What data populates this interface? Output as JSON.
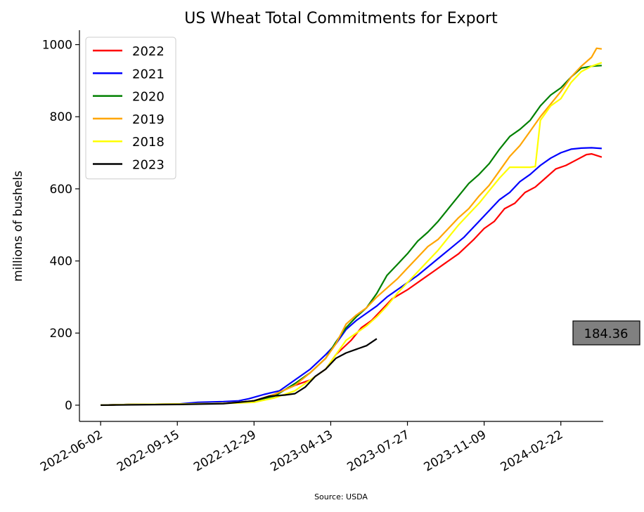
{
  "chart_data": {
    "type": "line",
    "title": "US Wheat Total Commitments for Export",
    "xlabel": "",
    "ylabel": "millions of bushels",
    "source": "Source: USDA",
    "ylim": [
      -45,
      1040
    ],
    "xlim": [
      "2022-05-04",
      "2024-04-20"
    ],
    "y_ticks": [
      0,
      200,
      400,
      600,
      800,
      1000
    ],
    "x_ticks": [
      "2022-06-02",
      "2022-09-15",
      "2022-12-29",
      "2023-04-13",
      "2023-07-27",
      "2023-11-09",
      "2024-02-22"
    ],
    "grid": false,
    "legend_position": "top-left",
    "annotation": {
      "text": "184.36",
      "background": "#808080"
    },
    "series": [
      {
        "name": "2022",
        "color": "#ff0000",
        "points": [
          [
            "2022-06-02",
            0
          ],
          [
            "2022-07-14",
            2
          ],
          [
            "2022-09-15",
            3
          ],
          [
            "2022-11-17",
            5
          ],
          [
            "2022-12-08",
            8
          ],
          [
            "2022-12-29",
            12
          ],
          [
            "2023-01-26",
            30
          ],
          [
            "2023-02-23",
            55
          ],
          [
            "2023-03-16",
            70
          ],
          [
            "2023-04-06",
            100
          ],
          [
            "2023-04-20",
            140
          ],
          [
            "2023-05-11",
            180
          ],
          [
            "2023-05-25",
            215
          ],
          [
            "2023-06-08",
            235
          ],
          [
            "2023-06-22",
            265
          ],
          [
            "2023-07-06",
            295
          ],
          [
            "2023-07-27",
            320
          ],
          [
            "2023-08-17",
            350
          ],
          [
            "2023-08-31",
            370
          ],
          [
            "2023-09-14",
            390
          ],
          [
            "2023-10-05",
            420
          ],
          [
            "2023-10-26",
            460
          ],
          [
            "2023-11-09",
            490
          ],
          [
            "2023-11-23",
            510
          ],
          [
            "2023-12-07",
            545
          ],
          [
            "2023-12-21",
            560
          ],
          [
            "2024-01-04",
            590
          ],
          [
            "2024-01-18",
            605
          ],
          [
            "2024-02-01",
            630
          ],
          [
            "2024-02-15",
            655
          ],
          [
            "2024-02-29",
            665
          ],
          [
            "2024-03-14",
            680
          ],
          [
            "2024-03-28",
            695
          ],
          [
            "2024-04-04",
            697
          ],
          [
            "2024-04-18",
            688
          ]
        ]
      },
      {
        "name": "2021",
        "color": "#0000ff",
        "points": [
          [
            "2022-06-02",
            0
          ],
          [
            "2022-07-14",
            2
          ],
          [
            "2022-09-15",
            3
          ],
          [
            "2022-10-13",
            8
          ],
          [
            "2022-11-17",
            10
          ],
          [
            "2022-12-08",
            12
          ],
          [
            "2022-12-22",
            18
          ],
          [
            "2023-01-12",
            30
          ],
          [
            "2023-02-02",
            40
          ],
          [
            "2023-02-23",
            70
          ],
          [
            "2023-03-16",
            100
          ],
          [
            "2023-04-06",
            140
          ],
          [
            "2023-04-20",
            170
          ],
          [
            "2023-05-04",
            210
          ],
          [
            "2023-05-18",
            235
          ],
          [
            "2023-06-01",
            255
          ],
          [
            "2023-06-15",
            275
          ],
          [
            "2023-06-29",
            300
          ],
          [
            "2023-07-20",
            330
          ],
          [
            "2023-08-10",
            360
          ],
          [
            "2023-08-31",
            395
          ],
          [
            "2023-09-21",
            430
          ],
          [
            "2023-10-12",
            465
          ],
          [
            "2023-11-02",
            510
          ],
          [
            "2023-11-16",
            540
          ],
          [
            "2023-11-30",
            570
          ],
          [
            "2023-12-14",
            590
          ],
          [
            "2023-12-28",
            620
          ],
          [
            "2024-01-11",
            640
          ],
          [
            "2024-01-25",
            665
          ],
          [
            "2024-02-08",
            685
          ],
          [
            "2024-02-22",
            700
          ],
          [
            "2024-03-07",
            710
          ],
          [
            "2024-03-21",
            713
          ],
          [
            "2024-04-04",
            714
          ],
          [
            "2024-04-18",
            712
          ]
        ]
      },
      {
        "name": "2020",
        "color": "#008000",
        "points": [
          [
            "2022-06-02",
            0
          ],
          [
            "2022-07-14",
            2
          ],
          [
            "2022-09-15",
            3
          ],
          [
            "2022-11-17",
            5
          ],
          [
            "2022-12-08",
            8
          ],
          [
            "2022-12-29",
            12
          ],
          [
            "2023-01-26",
            25
          ],
          [
            "2023-02-23",
            60
          ],
          [
            "2023-03-16",
            90
          ],
          [
            "2023-04-06",
            130
          ],
          [
            "2023-04-20",
            175
          ],
          [
            "2023-05-04",
            215
          ],
          [
            "2023-05-18",
            245
          ],
          [
            "2023-06-01",
            270
          ],
          [
            "2023-06-15",
            310
          ],
          [
            "2023-06-29",
            360
          ],
          [
            "2023-07-13",
            390
          ],
          [
            "2023-07-27",
            420
          ],
          [
            "2023-08-10",
            455
          ],
          [
            "2023-08-24",
            480
          ],
          [
            "2023-09-07",
            510
          ],
          [
            "2023-09-21",
            545
          ],
          [
            "2023-10-05",
            580
          ],
          [
            "2023-10-19",
            615
          ],
          [
            "2023-11-02",
            640
          ],
          [
            "2023-11-16",
            670
          ],
          [
            "2023-11-30",
            710
          ],
          [
            "2023-12-14",
            745
          ],
          [
            "2023-12-28",
            765
          ],
          [
            "2024-01-11",
            790
          ],
          [
            "2024-01-25",
            830
          ],
          [
            "2024-02-08",
            860
          ],
          [
            "2024-02-22",
            880
          ],
          [
            "2024-03-07",
            910
          ],
          [
            "2024-03-21",
            935
          ],
          [
            "2024-04-04",
            940
          ],
          [
            "2024-04-18",
            942
          ]
        ]
      },
      {
        "name": "2019",
        "color": "#ffa500",
        "points": [
          [
            "2022-06-02",
            0
          ],
          [
            "2022-07-14",
            2
          ],
          [
            "2022-09-15",
            3
          ],
          [
            "2022-11-17",
            5
          ],
          [
            "2022-12-08",
            8
          ],
          [
            "2022-12-29",
            12
          ],
          [
            "2023-01-26",
            30
          ],
          [
            "2023-02-23",
            55
          ],
          [
            "2023-03-16",
            90
          ],
          [
            "2023-04-06",
            130
          ],
          [
            "2023-04-20",
            170
          ],
          [
            "2023-05-04",
            225
          ],
          [
            "2023-05-18",
            250
          ],
          [
            "2023-06-01",
            270
          ],
          [
            "2023-06-15",
            300
          ],
          [
            "2023-06-29",
            325
          ],
          [
            "2023-07-13",
            350
          ],
          [
            "2023-07-27",
            380
          ],
          [
            "2023-08-10",
            410
          ],
          [
            "2023-08-24",
            440
          ],
          [
            "2023-09-07",
            460
          ],
          [
            "2023-09-21",
            490
          ],
          [
            "2023-10-05",
            520
          ],
          [
            "2023-10-19",
            545
          ],
          [
            "2023-11-02",
            580
          ],
          [
            "2023-11-16",
            610
          ],
          [
            "2023-11-30",
            650
          ],
          [
            "2023-12-14",
            690
          ],
          [
            "2023-12-28",
            720
          ],
          [
            "2024-01-11",
            760
          ],
          [
            "2024-01-25",
            800
          ],
          [
            "2024-02-08",
            835
          ],
          [
            "2024-02-22",
            870
          ],
          [
            "2024-03-07",
            910
          ],
          [
            "2024-03-21",
            940
          ],
          [
            "2024-04-04",
            965
          ],
          [
            "2024-04-11",
            990
          ],
          [
            "2024-04-18",
            988
          ]
        ]
      },
      {
        "name": "2018",
        "color": "#ffff00",
        "points": [
          [
            "2022-06-02",
            0
          ],
          [
            "2022-07-14",
            2
          ],
          [
            "2022-09-15",
            3
          ],
          [
            "2022-11-17",
            5
          ],
          [
            "2022-12-08",
            6
          ],
          [
            "2022-12-29",
            8
          ],
          [
            "2023-01-26",
            20
          ],
          [
            "2023-02-23",
            40
          ],
          [
            "2023-03-16",
            70
          ],
          [
            "2023-04-06",
            100
          ],
          [
            "2023-04-20",
            140
          ],
          [
            "2023-05-04",
            180
          ],
          [
            "2023-05-18",
            200
          ],
          [
            "2023-06-01",
            220
          ],
          [
            "2023-06-15",
            245
          ],
          [
            "2023-06-29",
            275
          ],
          [
            "2023-07-13",
            310
          ],
          [
            "2023-07-27",
            340
          ],
          [
            "2023-08-10",
            370
          ],
          [
            "2023-08-24",
            400
          ],
          [
            "2023-09-07",
            430
          ],
          [
            "2023-09-21",
            465
          ],
          [
            "2023-10-05",
            500
          ],
          [
            "2023-10-19",
            530
          ],
          [
            "2023-11-02",
            560
          ],
          [
            "2023-11-16",
            595
          ],
          [
            "2023-11-30",
            630
          ],
          [
            "2023-12-14",
            660
          ],
          [
            "2024-01-11",
            660
          ],
          [
            "2024-01-18",
            662
          ],
          [
            "2024-01-25",
            790
          ],
          [
            "2024-02-08",
            830
          ],
          [
            "2024-02-22",
            850
          ],
          [
            "2024-03-07",
            895
          ],
          [
            "2024-03-21",
            925
          ],
          [
            "2024-04-04",
            940
          ],
          [
            "2024-04-18",
            950
          ]
        ]
      },
      {
        "name": "2023",
        "color": "#000000",
        "points": [
          [
            "2022-06-02",
            0
          ],
          [
            "2022-07-14",
            1
          ],
          [
            "2022-09-15",
            2
          ],
          [
            "2022-11-17",
            4
          ],
          [
            "2022-12-08",
            8
          ],
          [
            "2022-12-29",
            12
          ],
          [
            "2023-01-19",
            25
          ],
          [
            "2023-02-09",
            28
          ],
          [
            "2023-02-23",
            32
          ],
          [
            "2023-03-09",
            50
          ],
          [
            "2023-03-23",
            80
          ],
          [
            "2023-04-06",
            100
          ],
          [
            "2023-04-20",
            130
          ],
          [
            "2023-05-04",
            145
          ],
          [
            "2023-05-18",
            155
          ],
          [
            "2023-06-01",
            165
          ],
          [
            "2023-06-15",
            184.36
          ]
        ]
      }
    ]
  }
}
